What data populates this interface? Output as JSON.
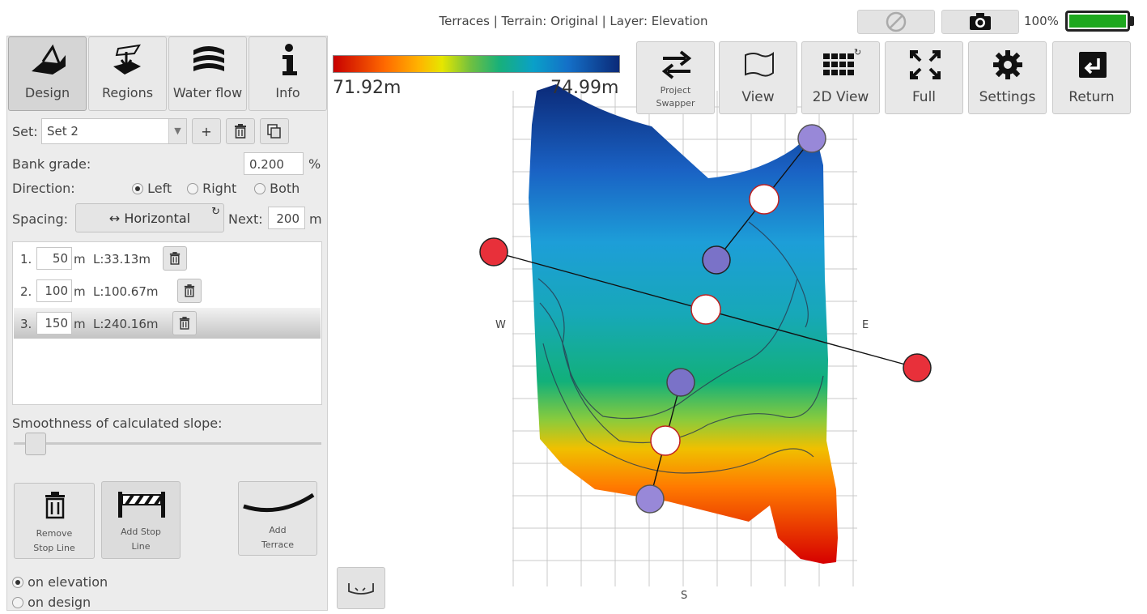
{
  "header": {
    "title": "Terraces | Terrain: Original | Layer: Elevation",
    "battery": "100%"
  },
  "tabs": [
    {
      "label": "Design",
      "icon": "design-icon"
    },
    {
      "label": "Regions",
      "icon": "regions-icon"
    },
    {
      "label": "Water flow",
      "icon": "water-flow-icon"
    },
    {
      "label": "Info",
      "icon": "info-icon"
    }
  ],
  "set": {
    "label": "Set:",
    "value": "Set 2",
    "add": "+"
  },
  "bank_grade": {
    "label": "Bank grade:",
    "value": "0.200",
    "unit": "%"
  },
  "direction": {
    "label": "Direction:",
    "left": "Left",
    "right": "Right",
    "both": "Both",
    "selected": "Left"
  },
  "spacing": {
    "label": "Spacing:",
    "mode": "↔ Horizontal",
    "next_label": "Next:",
    "next_value": "200",
    "unit": "m"
  },
  "terraces": [
    {
      "num": "1.",
      "value": "50",
      "unit": "m",
      "length": "L:33.13m"
    },
    {
      "num": "2.",
      "value": "100",
      "unit": "m",
      "length": "L:100.67m"
    },
    {
      "num": "3.",
      "value": "150",
      "unit": "m",
      "length": "L:240.16m"
    }
  ],
  "smoothness": {
    "label": "Smoothness of calculated slope:"
  },
  "actions": {
    "remove": [
      "Remove",
      "Stop Line"
    ],
    "add_stop": [
      "Add Stop",
      "Line"
    ],
    "add_terrace": [
      "Add",
      "Terrace"
    ]
  },
  "mode_options": {
    "elevation": "on elevation",
    "design": "on design"
  },
  "toolbar": {
    "project_swapper": [
      "Project",
      "Swapper"
    ],
    "view": "View",
    "view_2d": "2D View",
    "full": "Full",
    "settings": "Settings",
    "return": "Return"
  },
  "legend": {
    "min": "71.92m",
    "max": "74.99m"
  },
  "compass": {
    "west": "W",
    "east": "E",
    "south": "S"
  }
}
